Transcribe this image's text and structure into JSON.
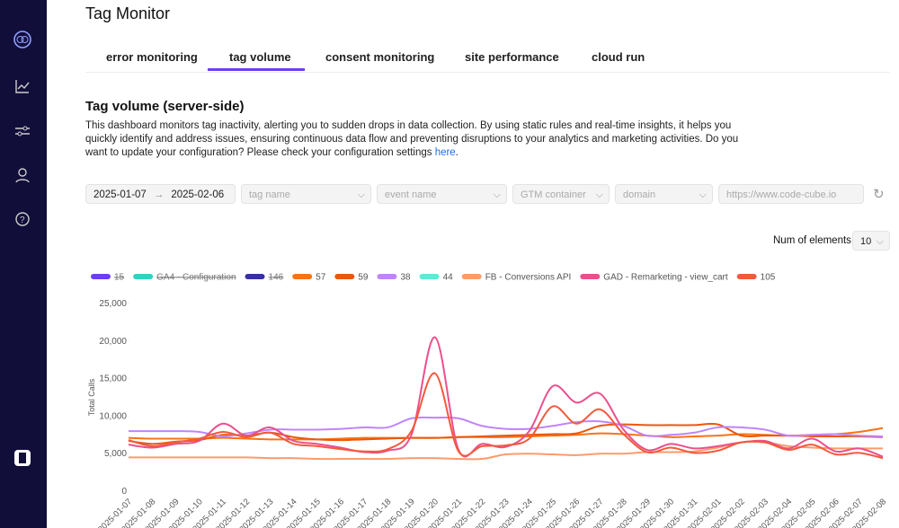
{
  "app": {
    "title": "Tag Monitor"
  },
  "tabs": [
    "error monitoring",
    "tag volume",
    "consent monitoring",
    "site performance",
    "cloud run"
  ],
  "active_tab": 1,
  "section": {
    "heading": "Tag volume (server-side)",
    "description": "This dashboard monitors tag inactivity, alerting you to sudden drops in data collection. By using static rules and real-time insights, it helps you quickly identify and address issues, ensuring continuous data flow and preventing disruptions to your analytics and marketing activities. Do you want to update your configuration? Please check your configuration settings ",
    "link": "here",
    "link_tail": "."
  },
  "filters": {
    "date_from": "2025-01-07",
    "date_to": "2025-02-06",
    "tag_name": "tag name",
    "event_name": "event name",
    "gtm_container": "GTM container",
    "domain": "domain",
    "url": "https://www.code-cube.io"
  },
  "num_elements": {
    "label": "Num of elements",
    "value": "10"
  },
  "chart_data": {
    "type": "line",
    "y_label": "Total Calls",
    "x": [
      "2025-01-07",
      "2025-01-08",
      "2025-01-09",
      "2025-01-10",
      "2025-01-11",
      "2025-01-12",
      "2025-01-13",
      "2025-01-14",
      "2025-01-15",
      "2025-01-16",
      "2025-01-17",
      "2025-01-18",
      "2025-01-19",
      "2025-01-20",
      "2025-01-21",
      "2025-01-22",
      "2025-01-23",
      "2025-01-24",
      "2025-01-25",
      "2025-01-26",
      "2025-01-27",
      "2025-01-28",
      "2025-01-29",
      "2025-01-30",
      "2025-01-31",
      "2025-02-01",
      "2025-02-02",
      "2025-02-03",
      "2025-02-04",
      "2025-02-05",
      "2025-02-06",
      "2025-02-07",
      "2025-02-08"
    ],
    "ylim": [
      0,
      25000
    ],
    "yticks": [
      0,
      {
        "value": 5000,
        "label": "5,000"
      },
      {
        "value": 10000,
        "label": "10,000"
      },
      {
        "value": 15000,
        "label": "15,000"
      },
      {
        "value": 20000,
        "label": "20,000"
      },
      {
        "value": 25000,
        "label": "25,000"
      }
    ],
    "series": [
      {
        "name": "15",
        "color": "#6d3ef2",
        "hidden": true
      },
      {
        "name": "GA4 - Configuration",
        "color": "#2dd4bf",
        "hidden": true
      },
      {
        "name": "146",
        "color": "#3730a3",
        "hidden": true
      },
      {
        "name": "57",
        "color": "#f97316",
        "values": [
          7100,
          7000,
          7000,
          7000,
          7100,
          7000,
          6900,
          6900,
          6900,
          7000,
          7100,
          7100,
          7100,
          7100,
          7200,
          7200,
          7200,
          7300,
          7400,
          7500,
          7700,
          7600,
          7400,
          7200,
          7300,
          7400,
          7600,
          7500,
          7400,
          7500,
          7600,
          7900,
          8400
        ]
      },
      {
        "name": "59",
        "color": "#ea580c",
        "values": [
          6700,
          6300,
          6600,
          6800,
          7500,
          7400,
          7800,
          7200,
          6900,
          6800,
          6900,
          7000,
          7100,
          7100,
          7200,
          7300,
          7400,
          7500,
          7600,
          7700,
          8700,
          8900,
          8800,
          8800,
          8800,
          8900,
          7400,
          7400,
          7400,
          7300,
          7300,
          7300,
          7200
        ]
      },
      {
        "name": "38",
        "color": "#c084fc",
        "values": [
          8000,
          8000,
          8000,
          7900,
          7300,
          7700,
          8200,
          8200,
          8200,
          8300,
          8500,
          8500,
          9700,
          9800,
          9700,
          8700,
          8300,
          8300,
          8700,
          9200,
          9300,
          8700,
          7400,
          7500,
          7800,
          8500,
          8500,
          8200,
          7400,
          7500,
          7600,
          7400,
          7300
        ]
      },
      {
        "name": "44",
        "color": "#5eead4"
      },
      {
        "name": "FB - Conversions API",
        "color": "#fb9b6b",
        "values": [
          4500,
          4500,
          4500,
          4500,
          4500,
          4500,
          4400,
          4400,
          4300,
          4300,
          4300,
          4300,
          4400,
          4400,
          4300,
          4300,
          4900,
          5000,
          4900,
          4800,
          5000,
          5000,
          5200,
          5200,
          5300,
          5800,
          6500,
          6500,
          6000,
          5800,
          5700,
          5700,
          5700
        ]
      },
      {
        "name": "GAD - Remarketing - view_cart",
        "color": "#ec4f8c",
        "values": [
          6200,
          5800,
          6300,
          6700,
          9000,
          7400,
          8500,
          6700,
          6300,
          5800,
          5200,
          5400,
          7500,
          20500,
          5500,
          6300,
          5900,
          8000,
          14000,
          11800,
          13000,
          8200,
          5500,
          6300,
          5700,
          6000,
          6500,
          6700,
          5700,
          7000,
          5300,
          5700,
          4600
        ]
      },
      {
        "name": "105",
        "color": "#f25a3c",
        "values": [
          6800,
          6000,
          6500,
          7000,
          7900,
          7200,
          7800,
          6300,
          6000,
          5600,
          5300,
          5600,
          8000,
          15700,
          5300,
          6000,
          6100,
          7000,
          11300,
          9000,
          10900,
          7600,
          5200,
          5800,
          5100,
          5400,
          6500,
          6500,
          5500,
          6200,
          4900,
          5100,
          4400
        ]
      }
    ]
  }
}
